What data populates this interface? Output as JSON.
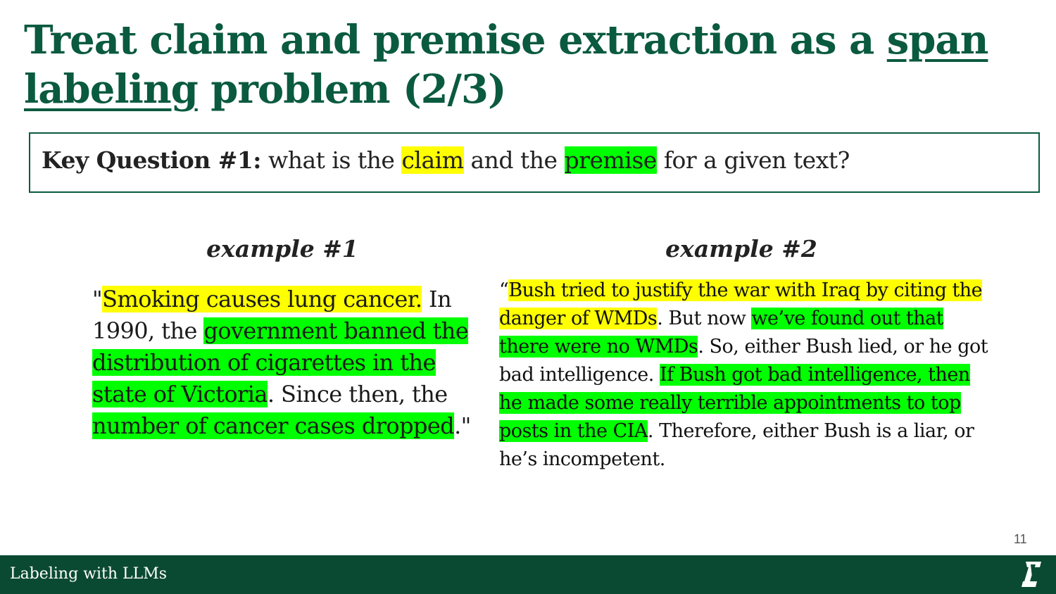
{
  "title": {
    "part1": "Treat claim and premise extraction as a ",
    "underlined1": "span",
    "underlined2": "labeling",
    "part2": " problem (2/3)"
  },
  "key_question": {
    "label": "Key Question #1:",
    "t1": " what is the ",
    "claim": "claim",
    "t2": " and the ",
    "premise": "premise",
    "t3": " for a given text?"
  },
  "example1": {
    "heading": "example #1",
    "segments": [
      {
        "text": "\"",
        "hl": "none"
      },
      {
        "text": "Smoking causes lung cancer.",
        "hl": "claim"
      },
      {
        "text": " In 1990, the ",
        "hl": "none"
      },
      {
        "text": "government banned the distribution of cigarettes in the state of Victoria",
        "hl": "premise"
      },
      {
        "text": ". Since then, the ",
        "hl": "none"
      },
      {
        "text": "number of cancer cases dropped",
        "hl": "premise"
      },
      {
        "text": ".\"",
        "hl": "none"
      }
    ]
  },
  "example2": {
    "heading": "example #2",
    "segments": [
      {
        "text": "“",
        "hl": "none"
      },
      {
        "text": "Bush tried to justify the war with Iraq by citing the danger of WMDs",
        "hl": "claim"
      },
      {
        "text": ". But now ",
        "hl": "none"
      },
      {
        "text": "we’ve found out that there were no WMDs",
        "hl": "premise"
      },
      {
        "text": ". So, either Bush lied, or he got bad intelligence. ",
        "hl": "none"
      },
      {
        "text": "If Bush got bad intelligence, then he made some really terrible appointments to top posts in the CIA",
        "hl": "premise"
      },
      {
        "text": ". Therefore, either Bush is a liar, or he’s incompetent.",
        "hl": "none"
      }
    ]
  },
  "page_number": "11",
  "footer": {
    "label": "Labeling with LLMs",
    "logo_icon": "university-logo-icon"
  },
  "colors": {
    "claim_highlight": "#ffff00",
    "premise_highlight": "#00ff00",
    "brand_green": "#0a5a3f",
    "footer_bg": "#0a4a32"
  }
}
